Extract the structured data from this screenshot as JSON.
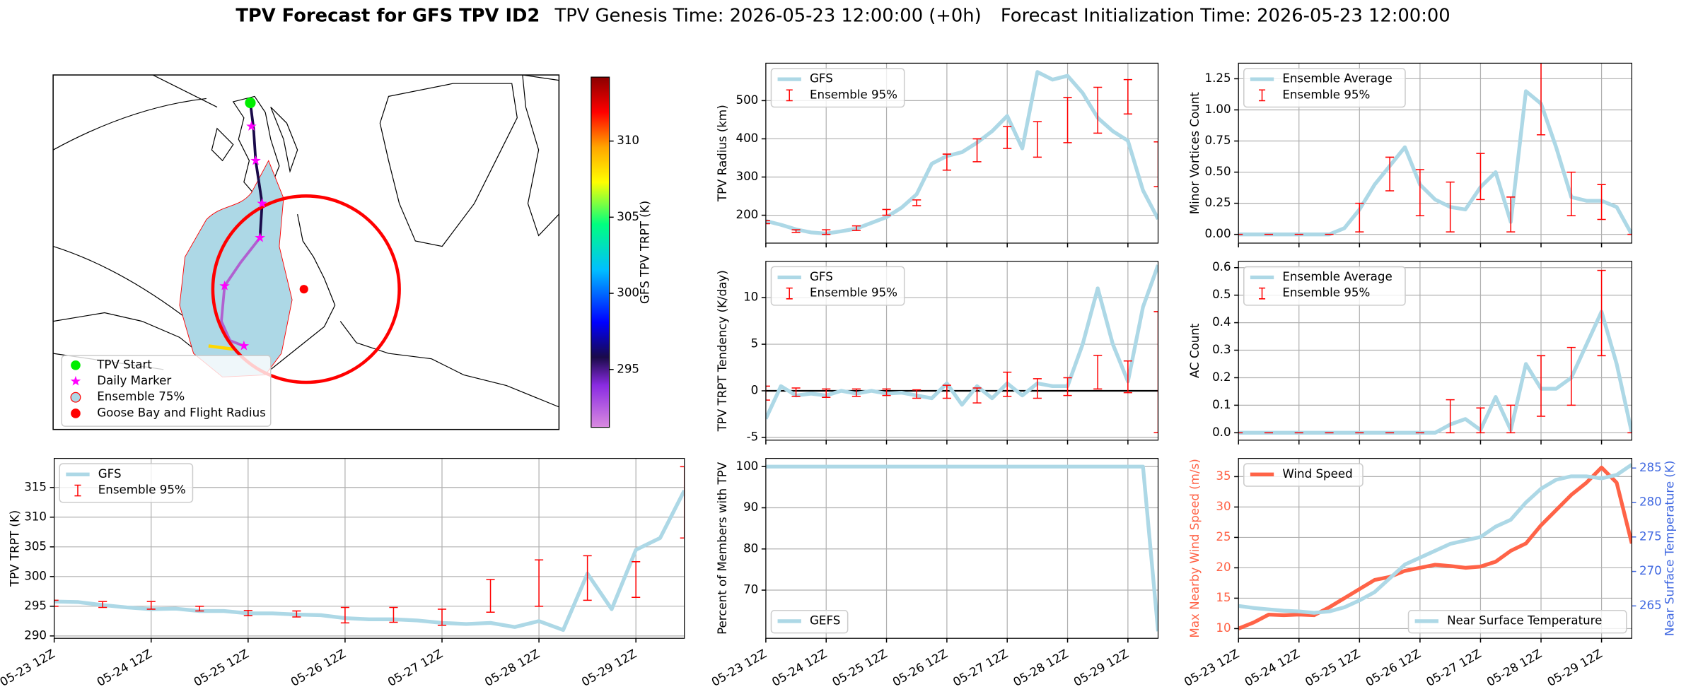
{
  "title": {
    "main": "TPV Forecast for GFS TPV ID2",
    "genesis": "TPV Genesis Time: 2026-05-23 12:00:00 (+0h)",
    "init": "Forecast Initialization Time: 2026-05-23 12:00:00"
  },
  "chart_data": [
    {
      "type": "map",
      "legend": [
        {
          "name": "TPV Start",
          "color": "#00ee00",
          "marker": "circle"
        },
        {
          "name": "Daily Marker",
          "color": "#ff00ff",
          "marker": "star"
        },
        {
          "name": "Ensemble 75%",
          "color": "#add8e6",
          "marker": "patch"
        },
        {
          "name": "Goose Bay and Flight Radius",
          "color": "#ff0000",
          "marker": "circle"
        }
      ],
      "colorbar": {
        "label": "GFS TPV TRPT (K)",
        "clim": [
          291.2,
          314.2
        ],
        "ticks": [
          295,
          300,
          305,
          310
        ]
      }
    },
    {
      "type": "line",
      "ylabel": "TPV Radius (km)",
      "xlim": [
        0,
        156
      ],
      "xticks": [
        0,
        24,
        48,
        72,
        96,
        120,
        144
      ],
      "ylim": [
        127,
        598
      ],
      "yticks": [
        200,
        300,
        400,
        500
      ],
      "grid": true,
      "legend": "upper left",
      "x": [
        0,
        6,
        12,
        18,
        24,
        30,
        36,
        42,
        48,
        54,
        60,
        66,
        72,
        78,
        84,
        90,
        96,
        102,
        108,
        114,
        120,
        126,
        132,
        138,
        144,
        150,
        156
      ],
      "series": [
        {
          "name": "GFS",
          "color": "#add8e6",
          "values": [
            185,
            175,
            163,
            155,
            152,
            158,
            165,
            180,
            195,
            220,
            255,
            335,
            355,
            365,
            390,
            420,
            460,
            375,
            575,
            555,
            565,
            520,
            455,
            420,
            395,
            265,
            190
          ]
        }
      ],
      "errorbars": {
        "name": "Ensemble 95%",
        "color": "#ff0000",
        "x": [
          0,
          12,
          24,
          36,
          48,
          60,
          72,
          84,
          96,
          108,
          120,
          132,
          144,
          156
        ],
        "low": [
          178,
          155,
          150,
          160,
          200,
          225,
          318,
          340,
          375,
          352,
          390,
          415,
          465,
          275
        ],
        "high": [
          186,
          162,
          162,
          172,
          215,
          240,
          360,
          400,
          432,
          445,
          508,
          535,
          555,
          392
        ]
      }
    },
    {
      "type": "line",
      "ylabel": "Minor Vortices Count",
      "xlim": [
        0,
        156
      ],
      "xticks": [
        0,
        24,
        48,
        72,
        96,
        120,
        144
      ],
      "ylim": [
        -0.07,
        1.375
      ],
      "yticks": [
        {
          "value": 0,
          "label": "0.00"
        },
        {
          "value": 0.25,
          "label": "0.25"
        },
        {
          "value": 0.5,
          "label": "0.50"
        },
        {
          "value": 0.75,
          "label": "0.75"
        },
        {
          "value": 1,
          "label": "1.00"
        },
        {
          "value": 1.25,
          "label": "1.25"
        }
      ],
      "grid": true,
      "legend": "upper left",
      "x": [
        0,
        6,
        12,
        18,
        24,
        30,
        36,
        42,
        48,
        54,
        60,
        66,
        72,
        78,
        84,
        90,
        96,
        102,
        108,
        114,
        120,
        126,
        132,
        138,
        144,
        150,
        156
      ],
      "series": [
        {
          "name": "Ensemble Average",
          "color": "#add8e6",
          "values": [
            0,
            0,
            0,
            0,
            0,
            0,
            0,
            0.05,
            0.2,
            0.4,
            0.55,
            0.7,
            0.4,
            0.28,
            0.22,
            0.2,
            0.38,
            0.5,
            0.1,
            1.15,
            1.05,
            0.7,
            0.3,
            0.27,
            0.27,
            0.22,
            0
          ]
        }
      ],
      "errorbars": {
        "name": "Ensemble 95%",
        "color": "#ff0000",
        "x": [
          0,
          12,
          24,
          36,
          48,
          60,
          72,
          84,
          96,
          108,
          120,
          132,
          144,
          156
        ],
        "low": [
          0,
          0,
          0,
          0,
          0.02,
          0.35,
          0.15,
          0.02,
          0.28,
          0.02,
          0.8,
          0.15,
          0.12,
          0
        ],
        "high": [
          0,
          0,
          0,
          0,
          0.25,
          0.62,
          0.52,
          0.42,
          0.65,
          0.3,
          1.38,
          0.5,
          0.4,
          0
        ]
      }
    },
    {
      "type": "line",
      "ylabel": "TPV TRPT Tendency (K/day)",
      "xlim": [
        0,
        156
      ],
      "xticks": [
        0,
        24,
        48,
        72,
        96,
        120,
        144
      ],
      "ylim": [
        -5.3,
        13.9
      ],
      "yticks": [
        -5,
        0,
        5,
        10
      ],
      "grid": true,
      "legend": "upper left",
      "reference_line": 0,
      "x": [
        0,
        6,
        12,
        18,
        24,
        30,
        36,
        42,
        48,
        54,
        60,
        66,
        72,
        78,
        84,
        90,
        96,
        102,
        108,
        114,
        120,
        126,
        132,
        138,
        144,
        150,
        156
      ],
      "series": [
        {
          "name": "GFS",
          "color": "#add8e6",
          "values": [
            -3,
            0.5,
            -0.5,
            -0.3,
            -0.5,
            0,
            -0.3,
            0,
            -0.3,
            -0.2,
            -0.5,
            -0.8,
            0.8,
            -1.5,
            0.5,
            -0.8,
            0.8,
            -0.5,
            0.8,
            0.5,
            0.5,
            5,
            11,
            5,
            1,
            9,
            13.5
          ]
        }
      ],
      "errorbars": {
        "name": "Ensemble 95%",
        "color": "#ff0000",
        "x": [
          0,
          12,
          24,
          36,
          48,
          60,
          72,
          84,
          96,
          108,
          120,
          132,
          144,
          156
        ],
        "low": [
          -1,
          -0.6,
          -0.7,
          -0.6,
          -0.5,
          -0.8,
          -0.8,
          -1.3,
          -0.6,
          -0.8,
          -0.5,
          0.2,
          -0.2,
          -4.5
        ],
        "high": [
          0.5,
          0.3,
          0.2,
          0.2,
          0.2,
          0.1,
          0.6,
          0.3,
          2,
          1.3,
          1.4,
          3.8,
          3.2,
          8.5
        ]
      }
    },
    {
      "type": "line",
      "ylabel": "AC Count",
      "xlim": [
        0,
        156
      ],
      "xticks": [
        0,
        24,
        48,
        72,
        96,
        120,
        144
      ],
      "ylim": [
        -0.027,
        0.623
      ],
      "yticks": [
        {
          "value": 0,
          "label": "0.0"
        },
        {
          "value": 0.1,
          "label": "0.1"
        },
        {
          "value": 0.2,
          "label": "0.2"
        },
        {
          "value": 0.3,
          "label": "0.3"
        },
        {
          "value": 0.4,
          "label": "0.4"
        },
        {
          "value": 0.5,
          "label": "0.5"
        },
        {
          "value": 0.6,
          "label": "0.6"
        }
      ],
      "grid": true,
      "legend": "upper left",
      "x": [
        0,
        6,
        12,
        18,
        24,
        30,
        36,
        42,
        48,
        54,
        60,
        66,
        72,
        78,
        84,
        90,
        96,
        102,
        108,
        114,
        120,
        126,
        132,
        138,
        144,
        150,
        156
      ],
      "series": [
        {
          "name": "Ensemble Average",
          "color": "#add8e6",
          "values": [
            0,
            0,
            0,
            0,
            0,
            0,
            0,
            0,
            0,
            0,
            0,
            0,
            0,
            0,
            0.03,
            0.05,
            0.01,
            0.13,
            0.01,
            0.25,
            0.16,
            0.16,
            0.2,
            0.32,
            0.44,
            0.25,
            0
          ]
        }
      ],
      "errorbars": {
        "name": "Ensemble 95%",
        "color": "#ff0000",
        "x": [
          0,
          12,
          24,
          36,
          48,
          60,
          72,
          84,
          96,
          108,
          120,
          132,
          144,
          156
        ],
        "low": [
          0,
          0,
          0,
          0,
          0,
          0,
          0,
          0,
          0,
          0,
          0.06,
          0.1,
          0.28,
          0
        ],
        "high": [
          0,
          0,
          0,
          0,
          0,
          0,
          0,
          0.12,
          0.09,
          0.1,
          0.28,
          0.31,
          0.59,
          0
        ]
      }
    },
    {
      "type": "line",
      "ylabel": "TPV TRPT (K)",
      "xlim": [
        0,
        156
      ],
      "xticks": [
        {
          "value": 0,
          "label": "05-23 12Z"
        },
        {
          "value": 24,
          "label": "05-24 12Z"
        },
        {
          "value": 48,
          "label": "05-25 12Z"
        },
        {
          "value": 72,
          "label": "05-26 12Z"
        },
        {
          "value": 96,
          "label": "05-27 12Z"
        },
        {
          "value": 120,
          "label": "05-28 12Z"
        },
        {
          "value": 144,
          "label": "05-29 12Z"
        }
      ],
      "ylim": [
        289.6,
        319.9
      ],
      "yticks": [
        290,
        295,
        300,
        305,
        310,
        315
      ],
      "grid": true,
      "legend": "upper left",
      "x": [
        0,
        6,
        12,
        18,
        24,
        30,
        36,
        42,
        48,
        54,
        60,
        66,
        72,
        78,
        84,
        90,
        96,
        102,
        108,
        114,
        120,
        126,
        132,
        138,
        144,
        150,
        156
      ],
      "series": [
        {
          "name": "GFS",
          "color": "#add8e6",
          "values": [
            295.8,
            295.7,
            295.2,
            294.8,
            294.5,
            294.6,
            294.2,
            294.2,
            293.8,
            293.8,
            293.6,
            293.5,
            293,
            292.8,
            292.8,
            292.6,
            292.2,
            292,
            292.2,
            291.5,
            292.5,
            291,
            300.5,
            294.5,
            304.5,
            306.5,
            314.5
          ]
        }
      ],
      "errorbars": {
        "name": "Ensemble 95%",
        "color": "#ff0000",
        "x": [
          0,
          12,
          24,
          36,
          48,
          60,
          72,
          84,
          96,
          108,
          120,
          132,
          144,
          156
        ],
        "low": [
          295,
          294.8,
          294.5,
          294.2,
          293.4,
          293.2,
          292.2,
          292.3,
          291.8,
          294,
          295,
          296,
          296.5,
          306.5
        ],
        "high": [
          296,
          295.8,
          295.8,
          295,
          294.3,
          294.2,
          294.8,
          294.8,
          294.5,
          299.5,
          302.8,
          303.5,
          302.5,
          318.5
        ]
      }
    },
    {
      "type": "line",
      "ylabel": "Percent of Members with TPV",
      "xlim": [
        0,
        156
      ],
      "xticks": [
        {
          "value": 0,
          "label": "05-23 12Z"
        },
        {
          "value": 24,
          "label": "05-24 12Z"
        },
        {
          "value": 48,
          "label": "05-25 12Z"
        },
        {
          "value": 72,
          "label": "05-26 12Z"
        },
        {
          "value": 96,
          "label": "05-27 12Z"
        },
        {
          "value": 120,
          "label": "05-28 12Z"
        },
        {
          "value": 144,
          "label": "05-29 12Z"
        }
      ],
      "ylim": [
        58.3,
        102
      ],
      "yticks": [
        70,
        80,
        90,
        100
      ],
      "grid": true,
      "legend": "lower left",
      "x": [
        0,
        6,
        12,
        18,
        24,
        30,
        36,
        42,
        48,
        54,
        60,
        66,
        72,
        78,
        84,
        90,
        96,
        102,
        108,
        114,
        120,
        126,
        132,
        138,
        144,
        150,
        156
      ],
      "series": [
        {
          "name": "GEFS",
          "color": "#add8e6",
          "values": [
            100,
            100,
            100,
            100,
            100,
            100,
            100,
            100,
            100,
            100,
            100,
            100,
            100,
            100,
            100,
            100,
            100,
            100,
            100,
            100,
            100,
            100,
            100,
            100,
            100,
            100,
            60
          ]
        }
      ]
    },
    {
      "type": "line",
      "ylabel": "Max Nearby Wind Speed (m/s)",
      "ylabel_color": "#ff6347",
      "y2label": "Near Surface Temperature (K)",
      "y2label_color": "#4169e1",
      "xlim": [
        0,
        156
      ],
      "xticks": [
        {
          "value": 0,
          "label": "05-23 12Z"
        },
        {
          "value": 24,
          "label": "05-24 12Z"
        },
        {
          "value": 48,
          "label": "05-25 12Z"
        },
        {
          "value": 72,
          "label": "05-26 12Z"
        },
        {
          "value": 96,
          "label": "05-27 12Z"
        },
        {
          "value": 120,
          "label": "05-28 12Z"
        },
        {
          "value": 144,
          "label": "05-29 12Z"
        }
      ],
      "ylim": [
        8.4,
        38
      ],
      "yticks": [
        10,
        15,
        20,
        25,
        30,
        35
      ],
      "y2lim": [
        260.3,
        286.4
      ],
      "y2ticks": [
        265,
        270,
        275,
        280,
        285
      ],
      "grid": true,
      "x": [
        0,
        6,
        12,
        18,
        24,
        30,
        36,
        42,
        48,
        54,
        60,
        66,
        72,
        78,
        84,
        90,
        96,
        102,
        108,
        114,
        120,
        126,
        132,
        138,
        144,
        150,
        156
      ],
      "series": [
        {
          "name": "Wind Speed",
          "color": "#ff6347",
          "legend": "upper left",
          "values": [
            10,
            11,
            12.3,
            12.2,
            12.3,
            12.2,
            13.5,
            15,
            16.5,
            18,
            18.5,
            19.5,
            20,
            20.5,
            20.3,
            20,
            20.2,
            21,
            22.8,
            24,
            27,
            29.5,
            32,
            34,
            36.5,
            34,
            24
          ]
        },
        {
          "name": "Near Surface Temperature",
          "color": "#add8e6",
          "axis": "y2",
          "legend": "lower right",
          "values": [
            265,
            264.7,
            264.5,
            264.3,
            264.2,
            264,
            264.2,
            264.8,
            265.8,
            267,
            269,
            271,
            272,
            273,
            274,
            274.5,
            275,
            276.5,
            277.5,
            280,
            282,
            283.3,
            283.8,
            283.8,
            283.5,
            284,
            285.5
          ]
        }
      ]
    }
  ]
}
